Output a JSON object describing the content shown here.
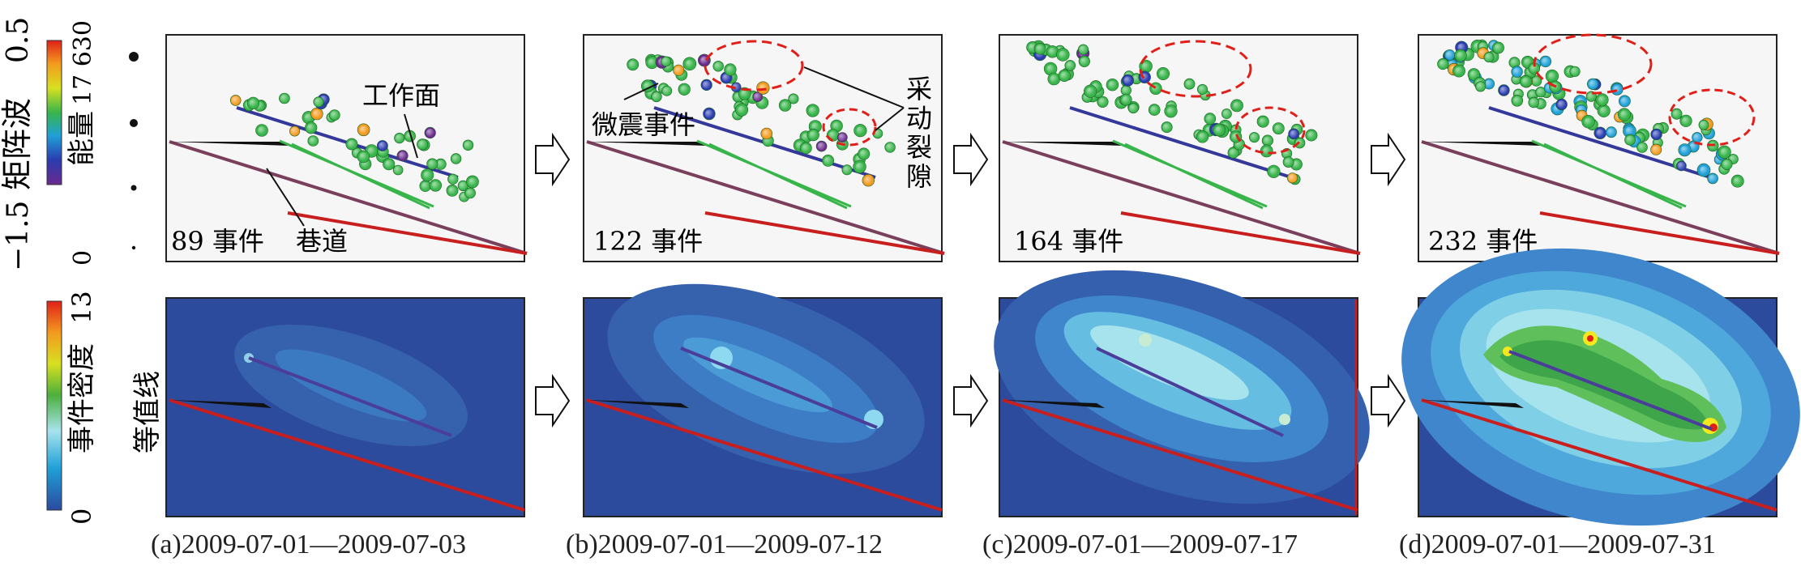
{
  "legend_top": {
    "variable_label": "矩阵波",
    "range_min": "−1.5",
    "range_max": "0.5",
    "energy_label": "能量",
    "energy_min": "0",
    "energy_max": "17 630",
    "colors": [
      "#6a2a8e",
      "#2a3cb0",
      "#1fa0d8",
      "#38b54a",
      "#d8e020",
      "#f39a1e",
      "#e02018"
    ]
  },
  "legend_bottom": {
    "title": "等值线",
    "label": "事件密度",
    "min": "0",
    "max": "13",
    "colors": [
      "#2a4aa0",
      "#1fa0d8",
      "#a7e3ec",
      "#4caf3c",
      "#d8e020",
      "#f39a1e",
      "#e02018"
    ]
  },
  "annotations": {
    "workface": "工作面",
    "roadway": "巷道",
    "microseismic": "微震事件",
    "fractures": [
      "采",
      "动",
      "裂",
      "隙"
    ]
  },
  "panels": [
    {
      "id": "a",
      "event_label": "89 事件",
      "caption": "(a)2009-07-01—2009-07-03"
    },
    {
      "id": "b",
      "event_label": "122 事件",
      "caption": "(b)2009-07-01—2009-07-12"
    },
    {
      "id": "c",
      "event_label": "164 事件",
      "caption": "(c)2009-07-01—2009-07-17"
    },
    {
      "id": "d",
      "event_label": "232 事件",
      "caption": "(d)2009-07-01—2009-07-31"
    }
  ],
  "arrows": [
    "next-arrow",
    "next-arrow",
    "next-arrow"
  ]
}
